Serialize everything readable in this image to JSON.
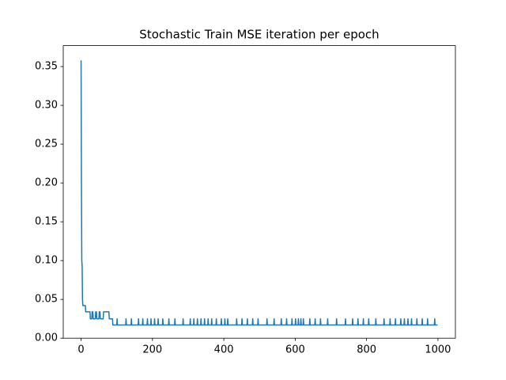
{
  "chart_data": {
    "type": "line",
    "title": "Stochastic Train MSE iteration per epoch",
    "x": [
      0,
      1,
      2,
      3,
      4,
      5,
      12,
      13,
      25,
      26,
      30,
      31,
      33,
      34,
      40,
      41,
      43,
      44,
      50,
      51,
      53,
      54,
      62,
      63,
      78,
      79,
      88,
      89,
      100,
      101,
      102,
      125,
      126,
      127,
      140,
      141,
      142,
      160,
      161,
      162,
      172,
      173,
      174,
      185,
      186,
      187,
      195,
      196,
      197,
      205,
      206,
      207,
      215,
      216,
      217,
      228,
      229,
      230,
      245,
      246,
      247,
      262,
      263,
      264,
      285,
      286,
      287,
      305,
      306,
      307,
      315,
      316,
      317,
      325,
      326,
      327,
      335,
      336,
      337,
      345,
      346,
      347,
      355,
      356,
      357,
      365,
      366,
      367,
      378,
      379,
      380,
      392,
      393,
      394,
      402,
      403,
      404,
      410,
      411,
      412,
      435,
      436,
      437,
      450,
      451,
      452,
      465,
      466,
      467,
      480,
      481,
      482,
      495,
      496,
      497,
      520,
      521,
      522,
      540,
      541,
      542,
      560,
      561,
      562,
      575,
      576,
      577,
      590,
      591,
      592,
      600,
      601,
      602,
      608,
      609,
      610,
      615,
      616,
      617,
      622,
      623,
      624,
      640,
      641,
      642,
      655,
      656,
      657,
      670,
      671,
      672,
      690,
      691,
      692,
      715,
      716,
      717,
      740,
      741,
      742,
      760,
      761,
      762,
      775,
      776,
      777,
      790,
      791,
      792,
      805,
      806,
      807,
      825,
      826,
      827,
      848,
      849,
      850,
      865,
      866,
      867,
      880,
      881,
      882,
      895,
      896,
      897,
      905,
      906,
      907,
      915,
      916,
      917,
      925,
      926,
      927,
      940,
      941,
      942,
      955,
      956,
      957,
      970,
      971,
      972,
      990,
      991,
      992,
      999
    ],
    "series": [
      {
        "color": "#1f77b4",
        "values": [
          0.358,
          0.2,
          0.1,
          0.093,
          0.05,
          0.042,
          0.042,
          0.034,
          0.034,
          0.025,
          0.025,
          0.034,
          0.034,
          0.025,
          0.025,
          0.034,
          0.034,
          0.025,
          0.025,
          0.034,
          0.034,
          0.025,
          0.025,
          0.034,
          0.034,
          0.025,
          0.025,
          0.017,
          0.017,
          0.025,
          0.017,
          0.017,
          0.025,
          0.017,
          0.017,
          0.025,
          0.017,
          0.017,
          0.025,
          0.017,
          0.017,
          0.025,
          0.017,
          0.017,
          0.025,
          0.017,
          0.017,
          0.025,
          0.017,
          0.017,
          0.025,
          0.017,
          0.017,
          0.025,
          0.017,
          0.017,
          0.025,
          0.017,
          0.017,
          0.025,
          0.017,
          0.017,
          0.025,
          0.017,
          0.017,
          0.025,
          0.017,
          0.017,
          0.025,
          0.017,
          0.017,
          0.025,
          0.017,
          0.017,
          0.025,
          0.017,
          0.017,
          0.025,
          0.017,
          0.017,
          0.025,
          0.017,
          0.017,
          0.025,
          0.017,
          0.017,
          0.025,
          0.017,
          0.017,
          0.025,
          0.017,
          0.017,
          0.025,
          0.017,
          0.017,
          0.025,
          0.017,
          0.017,
          0.025,
          0.017,
          0.017,
          0.025,
          0.017,
          0.017,
          0.025,
          0.017,
          0.017,
          0.025,
          0.017,
          0.017,
          0.025,
          0.017,
          0.017,
          0.025,
          0.017,
          0.017,
          0.025,
          0.017,
          0.017,
          0.025,
          0.017,
          0.017,
          0.025,
          0.017,
          0.017,
          0.025,
          0.017,
          0.017,
          0.025,
          0.017,
          0.017,
          0.025,
          0.017,
          0.017,
          0.025,
          0.017,
          0.017,
          0.025,
          0.017,
          0.017,
          0.025,
          0.017,
          0.017,
          0.025,
          0.017,
          0.017,
          0.025,
          0.017,
          0.017,
          0.025,
          0.017,
          0.017,
          0.025,
          0.017,
          0.017,
          0.025,
          0.017,
          0.017,
          0.025,
          0.017,
          0.017,
          0.025,
          0.017,
          0.017,
          0.025,
          0.017,
          0.017,
          0.025,
          0.017,
          0.017,
          0.025,
          0.017,
          0.017,
          0.025,
          0.017,
          0.017,
          0.025,
          0.017,
          0.017,
          0.025,
          0.017,
          0.017,
          0.025,
          0.017,
          0.017,
          0.025,
          0.017,
          0.017,
          0.025,
          0.017,
          0.017,
          0.025,
          0.017,
          0.017,
          0.025,
          0.017,
          0.017,
          0.025,
          0.017,
          0.017,
          0.025,
          0.017,
          0.017,
          0.025,
          0.017,
          0.017,
          0.025,
          0.017,
          0.017
        ]
      }
    ],
    "xlim": [
      -49.95,
      1048.95
    ],
    "xticks": [
      0,
      200,
      400,
      600,
      800,
      1000
    ],
    "ylim": [
      0,
      0.377
    ],
    "yticks": [
      {
        "value": 0,
        "label": "0.00"
      },
      {
        "value": 0.05,
        "label": "0.05"
      },
      {
        "value": 0.1,
        "label": "0.10"
      },
      {
        "value": 0.15,
        "label": "0.15"
      },
      {
        "value": 0.2,
        "label": "0.20"
      },
      {
        "value": 0.25,
        "label": "0.25"
      },
      {
        "value": 0.3,
        "label": "0.30"
      },
      {
        "value": 0.35,
        "label": "0.35"
      }
    ]
  }
}
